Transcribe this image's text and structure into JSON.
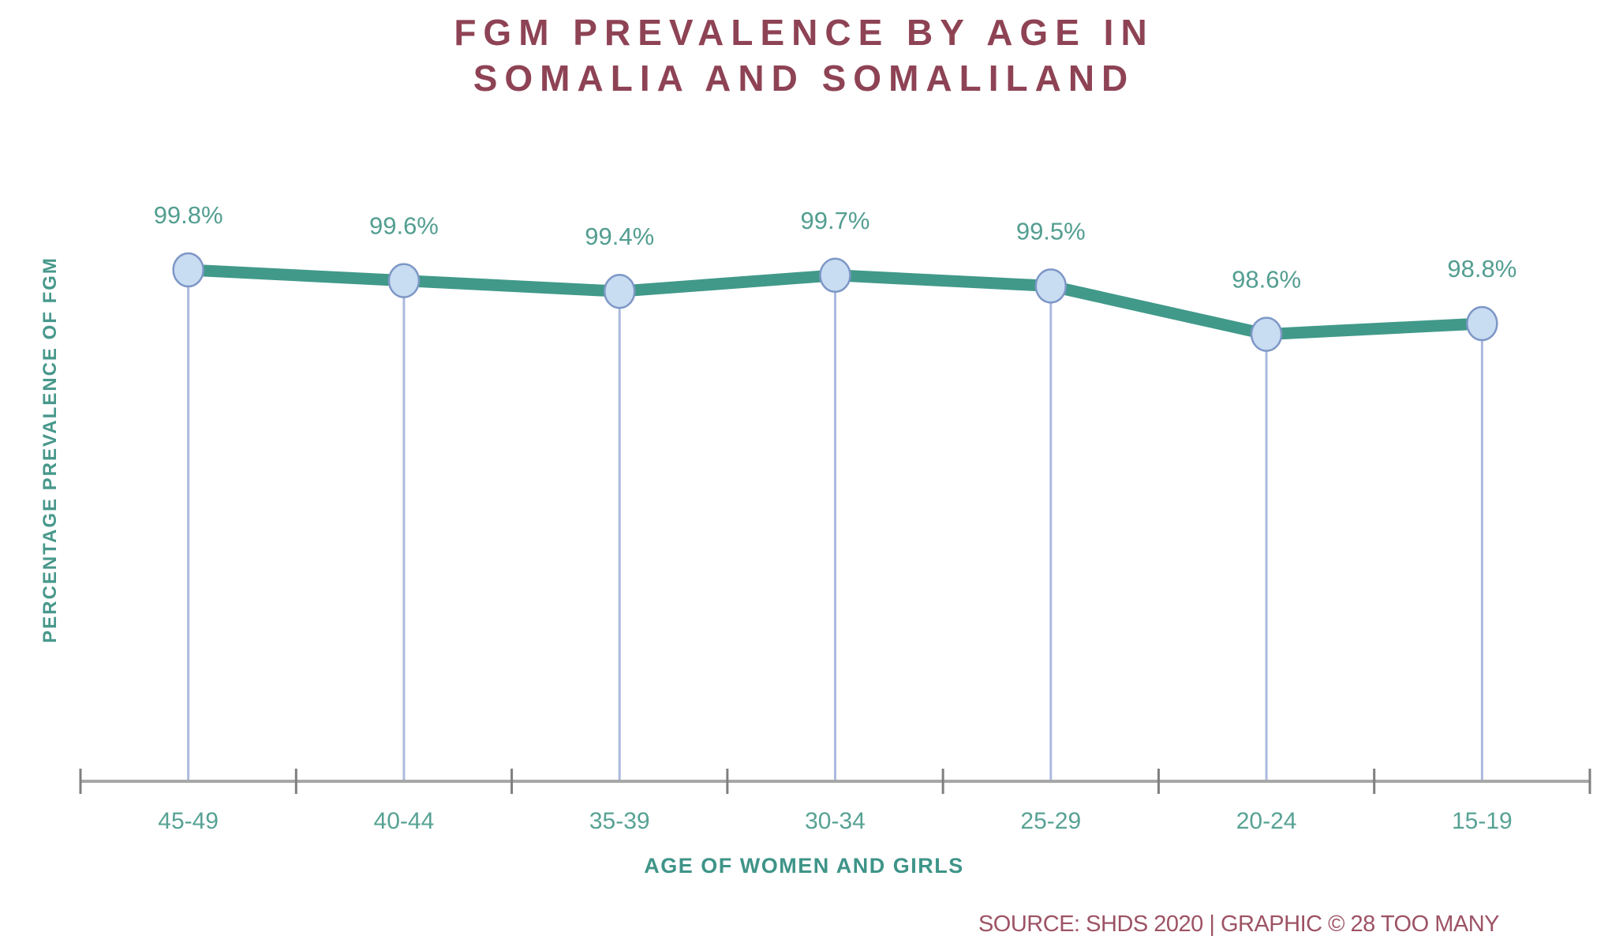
{
  "chart_data": {
    "type": "line",
    "title": "FGM PREVALENCE BY AGE IN SOMALIA AND SOMALILAND",
    "title_lines": [
      "FGM PREVALENCE BY AGE IN",
      "SOMALIA AND SOMALILAND"
    ],
    "xlabel": "AGE OF WOMEN AND GIRLS",
    "ylabel": "PERCENTAGE PREVALENCE OF FGM",
    "source_credit": "SOURCE: SHDS 2020 | GRAPHIC © 28 TOO MANY",
    "categories": [
      "45-49",
      "40-44",
      "35-39",
      "30-34",
      "25-29",
      "20-24",
      "15-19"
    ],
    "values": [
      99.8,
      99.6,
      99.4,
      99.7,
      99.5,
      98.6,
      98.8
    ],
    "value_labels": [
      "99.8%",
      "99.6%",
      "99.4%",
      "99.7%",
      "99.5%",
      "98.6%",
      "98.8%"
    ],
    "unit": "percent",
    "ylim_visible_approx": [
      98.4,
      100
    ],
    "y_axis_tick_labels": "none",
    "grid": false,
    "legend": "none",
    "marker": "circle",
    "drop_lines": true
  },
  "colors": {
    "title_maroon": "#8E4355",
    "source_maroon": "#9D5365",
    "line_teal": "#41998A",
    "value_label_teal": "#539E91",
    "category_label_teal": "#57A294",
    "axis_title_teal": "#3E9488",
    "y_axis_title_teal": "#47988B",
    "axis_gray": "#A7A7A7",
    "tick_gray": "#7F7F7F",
    "marker_fill": "#C8DCF2",
    "marker_stroke": "#7D97C6",
    "drop_line_blue": "#ABB9DF"
  }
}
